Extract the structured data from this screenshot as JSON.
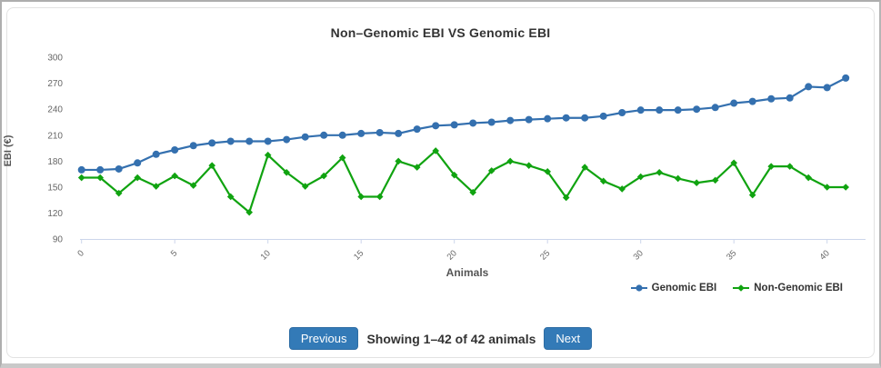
{
  "chart": {
    "title": "Non–Genomic EBI VS Genomic EBI",
    "y_axis_title": "EBI (€)",
    "x_axis_title": "Animals"
  },
  "chart_data": {
    "type": "line",
    "title": "Non–Genomic EBI VS Genomic EBI",
    "xlabel": "Animals",
    "ylabel": "EBI (€)",
    "ylim": [
      90,
      300
    ],
    "yticks": [
      90,
      120,
      150,
      180,
      210,
      240,
      270,
      300
    ],
    "xticks": [
      0,
      5,
      10,
      15,
      20,
      25,
      30,
      35,
      40
    ],
    "grid": false,
    "legend_position": "bottom-right",
    "x": [
      0,
      1,
      2,
      3,
      4,
      5,
      6,
      7,
      8,
      9,
      10,
      11,
      12,
      13,
      14,
      15,
      16,
      17,
      18,
      19,
      20,
      21,
      22,
      23,
      24,
      25,
      26,
      27,
      28,
      29,
      30,
      31,
      32,
      33,
      34,
      35,
      36,
      37,
      38,
      39,
      40,
      41
    ],
    "series": [
      {
        "name": "Genomic EBI",
        "color": "#3470af",
        "marker": "circle",
        "values": [
          170,
          170,
          171,
          178,
          188,
          193,
          198,
          201,
          203,
          203,
          203,
          205,
          208,
          210,
          210,
          212,
          213,
          212,
          217,
          221,
          222,
          224,
          225,
          227,
          228,
          229,
          230,
          230,
          232,
          236,
          239,
          239,
          239,
          240,
          242,
          247,
          249,
          252,
          253,
          266,
          265,
          276
        ]
      },
      {
        "name": "Non-Genomic EBI",
        "color": "#10a310",
        "marker": "diamond",
        "values": [
          161,
          161,
          143,
          161,
          151,
          163,
          152,
          175,
          139,
          121,
          187,
          167,
          151,
          163,
          184,
          139,
          139,
          180,
          173,
          192,
          164,
          144,
          169,
          180,
          175,
          168,
          138,
          173,
          157,
          148,
          162,
          167,
          160,
          155,
          158,
          178,
          141,
          174,
          174,
          161,
          150,
          150
        ]
      }
    ],
    "axis_color": "#ccd6eb",
    "tick_label_color": "#666666"
  },
  "pagination": {
    "previous_label": "Previous",
    "status_text": "Showing 1–42 of 42 animals",
    "next_label": "Next",
    "button_color": "#337ab7"
  }
}
